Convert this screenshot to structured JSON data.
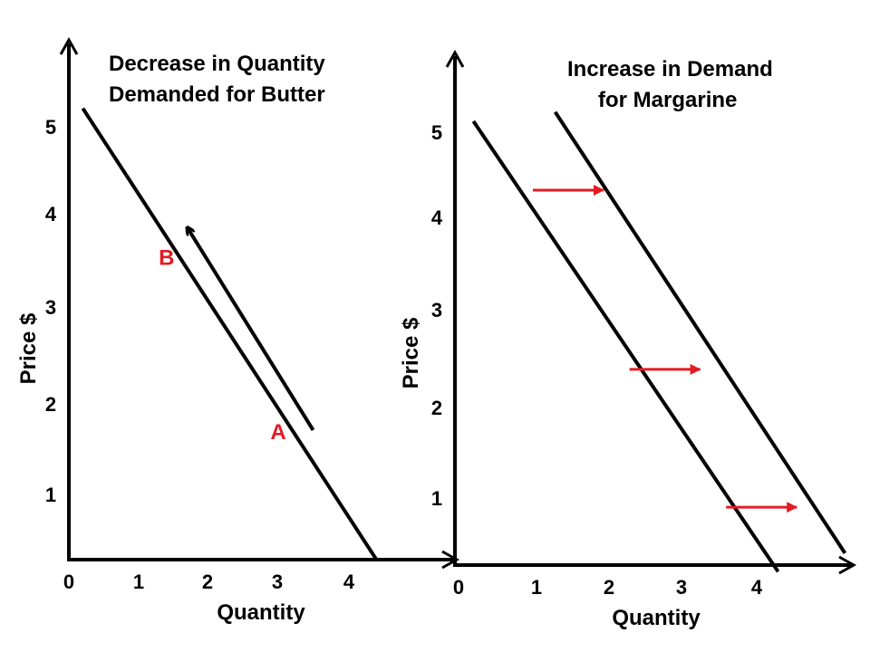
{
  "chart_data": [
    {
      "type": "line",
      "title": [
        "Decrease in Quantity",
        "Demanded for Butter"
      ],
      "xlabel": "Quantity",
      "ylabel": "Price $",
      "x_ticks": [
        "0",
        "1",
        "2",
        "3",
        "4"
      ],
      "y_ticks": [
        "1",
        "2",
        "3",
        "4",
        "5"
      ],
      "series": [
        {
          "points": [
            [
              0.2,
              5.2
            ],
            [
              4.4,
              0.3
            ]
          ]
        }
      ],
      "movement_arrow": {
        "from": [
          3.5,
          1.7
        ],
        "to": [
          1.7,
          3.9
        ]
      },
      "point_labels": [
        {
          "text": "B",
          "at": [
            1.4,
            3.5
          ]
        },
        {
          "text": "A",
          "at": [
            3.0,
            1.6
          ]
        }
      ],
      "colors": {
        "curve": "#000000",
        "label": "#e31b23"
      }
    },
    {
      "type": "line",
      "title": [
        "Increase in Demand",
        "for Margarine"
      ],
      "xlabel": "Quantity",
      "ylabel": "Price $",
      "x_ticks": [
        "0",
        "1",
        "2",
        "3",
        "4"
      ],
      "y_ticks": [
        "1",
        "2",
        "3",
        "4",
        "5"
      ],
      "series": [
        {
          "points": [
            [
              0.2,
              5.1
            ],
            [
              4.3,
              0.2
            ]
          ]
        },
        {
          "points": [
            [
              1.3,
              5.2
            ],
            [
              5.2,
              0.4
            ]
          ]
        }
      ],
      "shift_arrows": [
        {
          "from": [
            1.0,
            4.35
          ],
          "to": [
            2.0,
            4.35
          ]
        },
        {
          "from": [
            2.3,
            2.4
          ],
          "to": [
            3.3,
            2.4
          ]
        },
        {
          "from": [
            3.6,
            0.9
          ],
          "to": [
            4.6,
            0.9
          ]
        }
      ],
      "colors": {
        "curve": "#000000",
        "arrow": "#e31b23"
      }
    }
  ]
}
